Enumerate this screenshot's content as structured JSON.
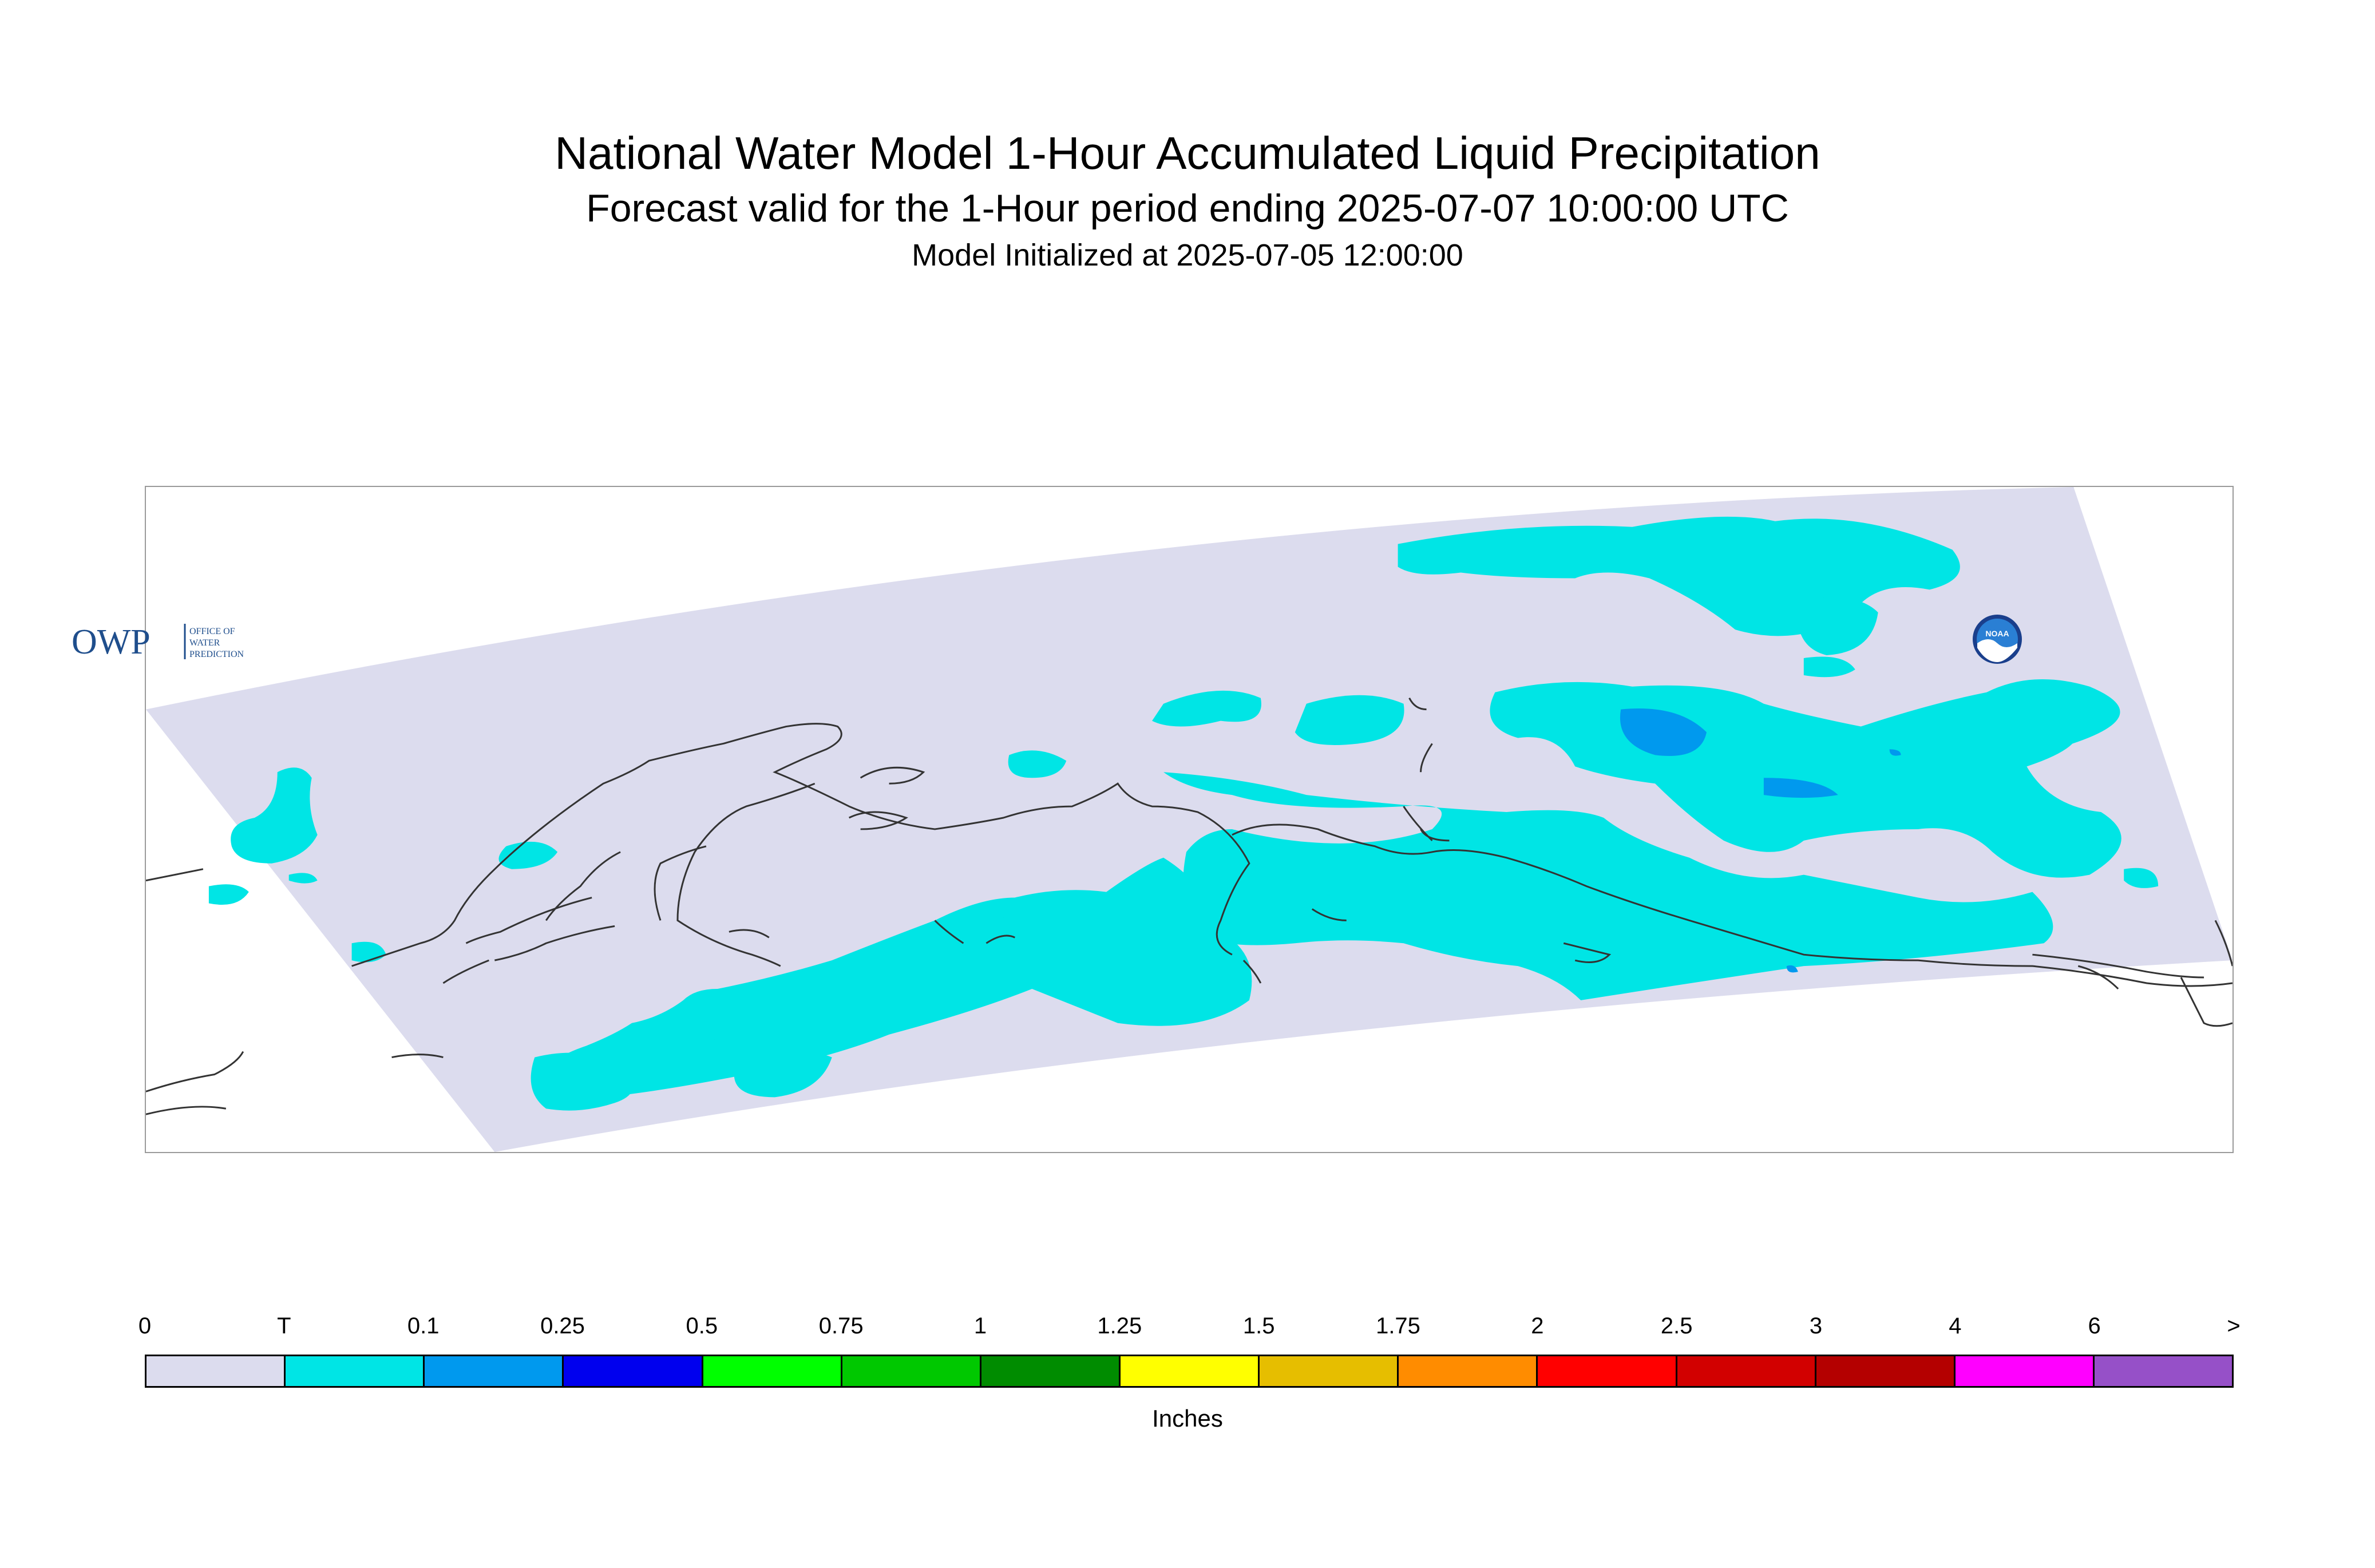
{
  "title": "National Water Model 1-Hour Accumulated Liquid Precipitation",
  "subtitle": "Forecast valid for the 1-Hour period ending 2025-07-07 10:00:00 UTC",
  "init_text": "Model Initialized at 2025-07-05 12:00:00",
  "map": {
    "domain_color": "#dcdcee",
    "precip_light_color": "#00e5e5",
    "precip_moderate_color": "#0099ee",
    "coastline_color": "#333333"
  },
  "logos": {
    "owp_main": "OWP",
    "owp_sub": [
      "OFFICE OF",
      "WATER",
      "PREDICTION"
    ],
    "noaa": "NOAA"
  },
  "legend": {
    "labels": [
      "0",
      "T",
      "0.1",
      "0.25",
      "0.5",
      "0.75",
      "1",
      "1.25",
      "1.5",
      "1.75",
      "2",
      "2.5",
      "3",
      "4",
      "6",
      ">"
    ],
    "colors": [
      "#dcdcee",
      "#00e5e5",
      "#0099ee",
      "#0000ee",
      "#00ff00",
      "#00c800",
      "#008c00",
      "#ffff00",
      "#e6be00",
      "#ff8c00",
      "#ff0000",
      "#d20000",
      "#b40000",
      "#ff00ff",
      "#9650c8"
    ],
    "unit": "Inches"
  }
}
